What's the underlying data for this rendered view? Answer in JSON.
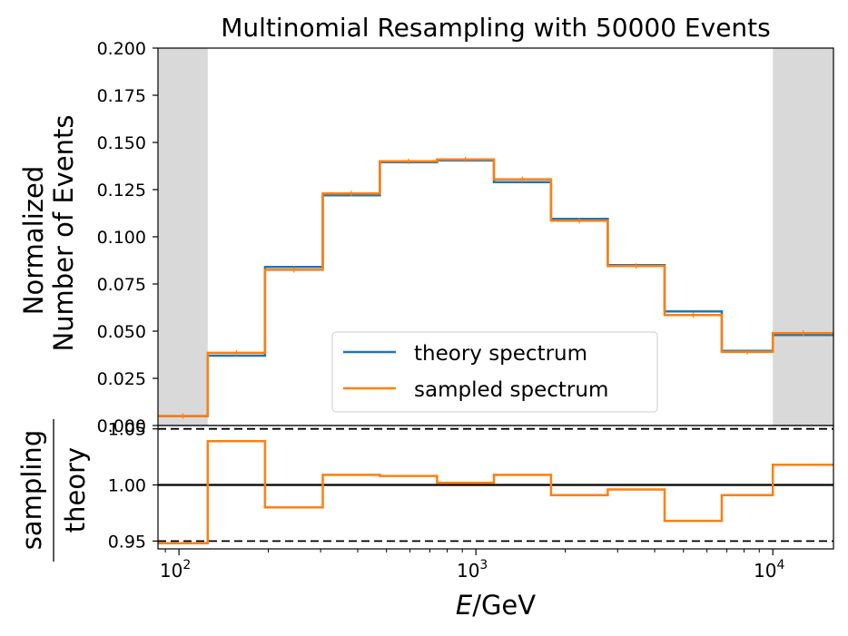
{
  "chart_data": [
    {
      "type": "line",
      "title": "Multinomial Resampling with 50000 Events",
      "ylabel_lines": [
        "Normalized",
        "Number of Events"
      ],
      "xscale": "log",
      "xlim": [
        85,
        16000
      ],
      "ylim": [
        0,
        0.2
      ],
      "yticks": [
        "0.000",
        "0.025",
        "0.050",
        "0.075",
        "0.100",
        "0.125",
        "0.150",
        "0.175",
        "0.200"
      ],
      "shaded_regions": [
        [
          85,
          125
        ],
        [
          10000,
          16000
        ]
      ],
      "bin_edges": [
        85,
        125,
        195,
        305,
        475,
        740,
        1150,
        1790,
        2780,
        4320,
        6730,
        10000,
        16000
      ],
      "legend": {
        "position": "lower-center"
      },
      "series": [
        {
          "name": "theory spectrum",
          "color": "#1f77b4",
          "values": [
            0.005,
            0.037,
            0.084,
            0.122,
            0.1395,
            0.1405,
            0.129,
            0.1095,
            0.085,
            0.0605,
            0.0395,
            0.048
          ]
        },
        {
          "name": "sampled spectrum",
          "color": "#ff7f0e",
          "values": [
            0.005,
            0.0385,
            0.0825,
            0.123,
            0.14,
            0.141,
            0.1305,
            0.1085,
            0.0845,
            0.0585,
            0.039,
            0.049
          ]
        }
      ]
    },
    {
      "type": "line",
      "ylabel_numerator": "sampling",
      "ylabel_denominator": "theory",
      "xlabel_italic": "E",
      "xlabel_rest": "/GeV",
      "xscale": "log",
      "xlim": [
        85,
        16000
      ],
      "ylim": [
        0.943,
        1.053
      ],
      "yticks": [
        "0.95",
        "1.00",
        "1.05"
      ],
      "xticks": [
        {
          "value": 100,
          "base": "10",
          "exp": "2"
        },
        {
          "value": 1000,
          "base": "10",
          "exp": "3"
        },
        {
          "value": 10000,
          "base": "10",
          "exp": "4"
        }
      ],
      "reference_lines": [
        {
          "y": 1.0,
          "style": "solid"
        },
        {
          "y": 0.95,
          "style": "dashed"
        },
        {
          "y": 1.05,
          "style": "dashed"
        }
      ],
      "bin_edges": [
        85,
        125,
        195,
        305,
        475,
        740,
        1150,
        1790,
        2780,
        4320,
        6730,
        10000,
        16000
      ],
      "series": [
        {
          "color": "#ff7f0e",
          "values": [
            0.948,
            1.039,
            0.98,
            1.009,
            1.008,
            1.002,
            1.009,
            0.991,
            0.996,
            0.968,
            0.991,
            1.018
          ]
        }
      ]
    }
  ]
}
